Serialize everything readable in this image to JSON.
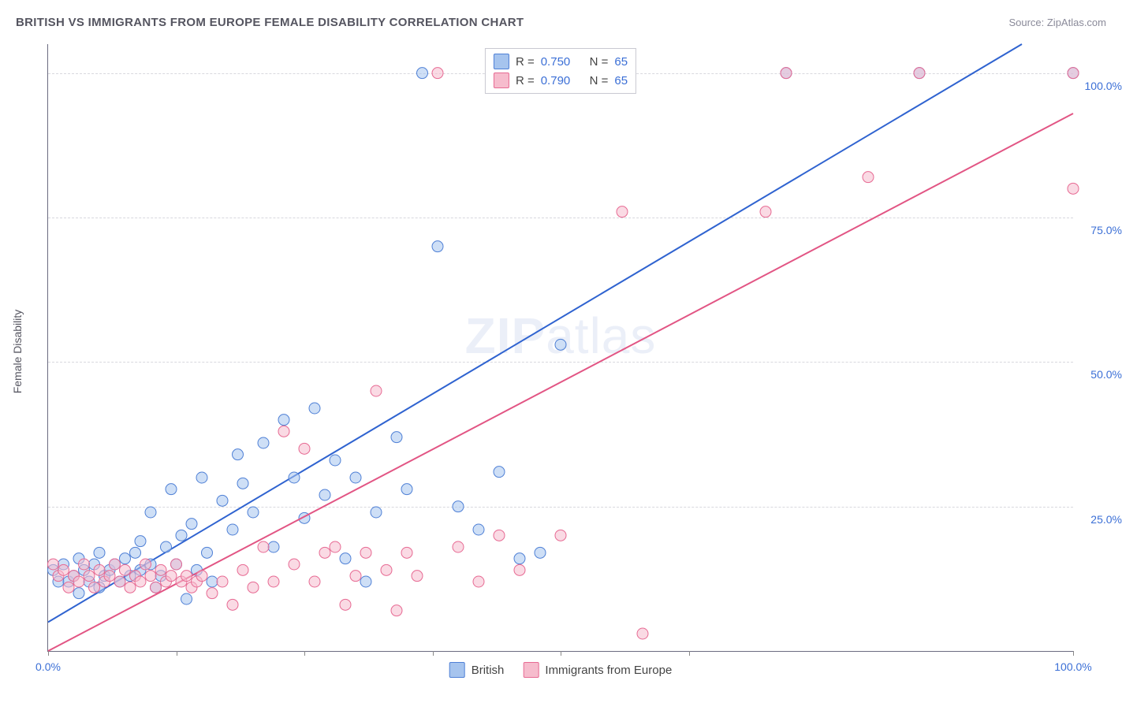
{
  "title": "BRITISH VS IMMIGRANTS FROM EUROPE FEMALE DISABILITY CORRELATION CHART",
  "source_prefix": "Source: ",
  "source_name": "ZipAtlas.com",
  "ylabel": "Female Disability",
  "watermark": "ZIPatlas",
  "chart": {
    "type": "scatter-with-regression",
    "xlim": [
      0,
      100
    ],
    "ylim": [
      0,
      105
    ],
    "x_ticks": [
      0,
      12.5,
      25,
      37.5,
      50,
      62.5,
      100
    ],
    "x_tick_labels": {
      "0": "0.0%",
      "100": "100.0%"
    },
    "y_gridlines": [
      25,
      50,
      75,
      100
    ],
    "y_tick_labels": {
      "25": "25.0%",
      "50": "50.0%",
      "75": "75.0%",
      "100": "100.0%"
    },
    "background_color": "#ffffff",
    "grid_color": "#d8d8de",
    "axis_color": "#6b6b80",
    "tick_label_color": "#3b6fd6",
    "marker_radius": 7,
    "marker_opacity": 0.55,
    "line_width": 2,
    "series": [
      {
        "name": "British",
        "stat_R": "0.750",
        "stat_N": "65",
        "fill": "#a6c4ee",
        "stroke": "#4f80d6",
        "line_color": "#2f63d0",
        "regression": {
          "x1": 0,
          "y1": 5,
          "x2": 95,
          "y2": 105
        },
        "points": [
          [
            0.5,
            14
          ],
          [
            1,
            12
          ],
          [
            1.5,
            15
          ],
          [
            2,
            12
          ],
          [
            2.5,
            13
          ],
          [
            3,
            10
          ],
          [
            3,
            16
          ],
          [
            3.5,
            14
          ],
          [
            4,
            12
          ],
          [
            4.5,
            15
          ],
          [
            5,
            11
          ],
          [
            5,
            17
          ],
          [
            5.5,
            13
          ],
          [
            6,
            14
          ],
          [
            6.5,
            15
          ],
          [
            7,
            12
          ],
          [
            7.5,
            16
          ],
          [
            8,
            13
          ],
          [
            8.5,
            17
          ],
          [
            9,
            14
          ],
          [
            9,
            19
          ],
          [
            10,
            15
          ],
          [
            10,
            24
          ],
          [
            10.5,
            11
          ],
          [
            11,
            13
          ],
          [
            11.5,
            18
          ],
          [
            12,
            28
          ],
          [
            12.5,
            15
          ],
          [
            13,
            20
          ],
          [
            13.5,
            9
          ],
          [
            14,
            22
          ],
          [
            14.5,
            14
          ],
          [
            15,
            30
          ],
          [
            15.5,
            17
          ],
          [
            16,
            12
          ],
          [
            17,
            26
          ],
          [
            18,
            21
          ],
          [
            18.5,
            34
          ],
          [
            19,
            29
          ],
          [
            20,
            24
          ],
          [
            21,
            36
          ],
          [
            22,
            18
          ],
          [
            23,
            40
          ],
          [
            24,
            30
          ],
          [
            25,
            23
          ],
          [
            26,
            42
          ],
          [
            27,
            27
          ],
          [
            28,
            33
          ],
          [
            29,
            16
          ],
          [
            30,
            30
          ],
          [
            31,
            12
          ],
          [
            32,
            24
          ],
          [
            34,
            37
          ],
          [
            35,
            28
          ],
          [
            36.5,
            100
          ],
          [
            38,
            70
          ],
          [
            40,
            25
          ],
          [
            42,
            21
          ],
          [
            44,
            31
          ],
          [
            46,
            16
          ],
          [
            48,
            17
          ],
          [
            50,
            53
          ],
          [
            72,
            100
          ],
          [
            85,
            100
          ],
          [
            100,
            100
          ]
        ]
      },
      {
        "name": "Immigrants from Europe",
        "stat_R": "0.790",
        "stat_N": "65",
        "fill": "#f6bccd",
        "stroke": "#e76a93",
        "line_color": "#e25584",
        "regression": {
          "x1": 0,
          "y1": 0,
          "x2": 100,
          "y2": 93
        },
        "points": [
          [
            0.5,
            15
          ],
          [
            1,
            13
          ],
          [
            1.5,
            14
          ],
          [
            2,
            11
          ],
          [
            2.5,
            13
          ],
          [
            3,
            12
          ],
          [
            3.5,
            15
          ],
          [
            4,
            13
          ],
          [
            4.5,
            11
          ],
          [
            5,
            14
          ],
          [
            5.5,
            12
          ],
          [
            6,
            13
          ],
          [
            6.5,
            15
          ],
          [
            7,
            12
          ],
          [
            7.5,
            14
          ],
          [
            8,
            11
          ],
          [
            8.5,
            13
          ],
          [
            9,
            12
          ],
          [
            9.5,
            15
          ],
          [
            10,
            13
          ],
          [
            10.5,
            11
          ],
          [
            11,
            14
          ],
          [
            11.5,
            12
          ],
          [
            12,
            13
          ],
          [
            12.5,
            15
          ],
          [
            13,
            12
          ],
          [
            13.5,
            13
          ],
          [
            14,
            11
          ],
          [
            14.5,
            12
          ],
          [
            15,
            13
          ],
          [
            16,
            10
          ],
          [
            17,
            12
          ],
          [
            18,
            8
          ],
          [
            19,
            14
          ],
          [
            20,
            11
          ],
          [
            21,
            18
          ],
          [
            22,
            12
          ],
          [
            23,
            38
          ],
          [
            24,
            15
          ],
          [
            25,
            35
          ],
          [
            26,
            12
          ],
          [
            27,
            17
          ],
          [
            28,
            18
          ],
          [
            29,
            8
          ],
          [
            30,
            13
          ],
          [
            31,
            17
          ],
          [
            32,
            45
          ],
          [
            33,
            14
          ],
          [
            34,
            7
          ],
          [
            35,
            17
          ],
          [
            36,
            13
          ],
          [
            38,
            100
          ],
          [
            40,
            18
          ],
          [
            42,
            12
          ],
          [
            44,
            20
          ],
          [
            46,
            14
          ],
          [
            50,
            20
          ],
          [
            56,
            76
          ],
          [
            58,
            3
          ],
          [
            70,
            76
          ],
          [
            72,
            100
          ],
          [
            80,
            82
          ],
          [
            85,
            100
          ],
          [
            100,
            100
          ],
          [
            100,
            80
          ]
        ]
      }
    ]
  },
  "legend_top_labels": {
    "R": "R =",
    "N": "N ="
  },
  "legend_bottom": [
    "British",
    "Immigrants from Europe"
  ]
}
